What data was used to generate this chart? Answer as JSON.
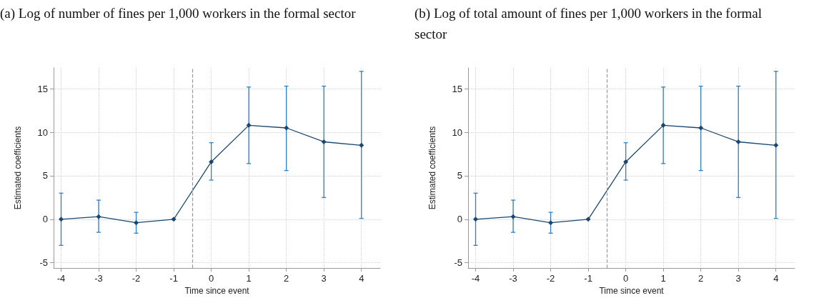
{
  "chart_data": [
    {
      "type": "line",
      "title": "(a) Log of number of fines per 1,000 workers in the formal sector",
      "xlabel": "Time since event",
      "ylabel": "Estimated coefficients",
      "x": [
        -4,
        -3,
        -2,
        -1,
        0,
        1,
        2,
        3,
        4
      ],
      "series": [
        {
          "color": "#1a476f",
          "values": [
            0,
            0.3,
            -0.4,
            0,
            6.6,
            10.8,
            10.5,
            8.9,
            8.5
          ],
          "errors": [
            [
              -3,
              3
            ],
            [
              -1.5,
              2.2
            ],
            [
              -1.6,
              0.8
            ],
            null,
            [
              4.5,
              8.8
            ],
            [
              6.4,
              15.2
            ],
            [
              5.6,
              15.3
            ],
            [
              2.5,
              15.3
            ],
            [
              0.1,
              17
            ]
          ]
        }
      ],
      "xlim": [
        -4.2,
        4.5
      ],
      "ylim": [
        -5.6,
        17.4
      ],
      "xticks": [
        -4,
        -3,
        -2,
        -1,
        0,
        1,
        2,
        3,
        4
      ],
      "yticks": [
        -5,
        0,
        5,
        10,
        15
      ],
      "grid": true,
      "marker": "diamond",
      "line_style": "solid",
      "ref_lines": [
        {
          "axis": "x",
          "value": -0.5,
          "color": "#999999",
          "line_style": "dashed"
        }
      ]
    },
    {
      "type": "line",
      "title": "(b) Log of total amount of fines per 1,000 workers in the formal sector",
      "xlabel": "Time since event",
      "ylabel": "Estimated coefficients",
      "x": [
        -4,
        -3,
        -2,
        -1,
        0,
        1,
        2,
        3,
        4
      ],
      "series": [
        {
          "color": "#1a476f",
          "values": [
            0,
            0.3,
            -0.4,
            0,
            6.6,
            10.8,
            10.5,
            8.9,
            8.5
          ],
          "errors": [
            [
              -3,
              3
            ],
            [
              -1.5,
              2.2
            ],
            [
              -1.6,
              0.8
            ],
            null,
            [
              4.5,
              8.8
            ],
            [
              6.4,
              15.2
            ],
            [
              5.6,
              15.3
            ],
            [
              2.5,
              15.3
            ],
            [
              0.1,
              17
            ]
          ]
        }
      ],
      "xlim": [
        -4.2,
        4.5
      ],
      "ylim": [
        -5.6,
        17.4
      ],
      "xticks": [
        -4,
        -3,
        -2,
        -1,
        0,
        1,
        2,
        3,
        4
      ],
      "yticks": [
        -5,
        0,
        5,
        10,
        15
      ],
      "grid": true,
      "marker": "diamond",
      "line_style": "solid",
      "ref_lines": [
        {
          "axis": "x",
          "value": -0.5,
          "color": "#999999",
          "line_style": "dashed"
        }
      ]
    }
  ]
}
